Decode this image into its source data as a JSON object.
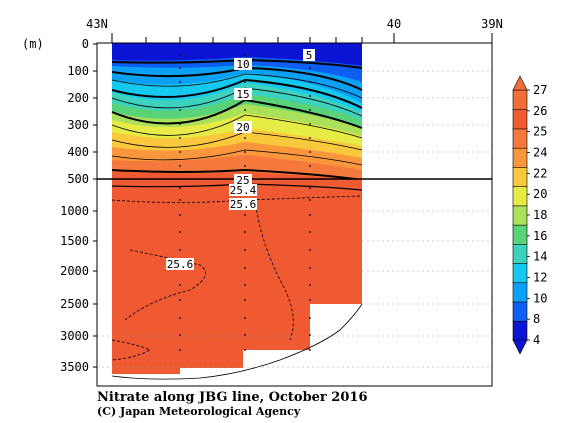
{
  "chart_data": {
    "type": "heatmap",
    "title": "Nitrate along JBG line, October 2016",
    "credit": "(C) Japan Meteorological Agency",
    "y_unit": "(m)",
    "x_ticks": [
      "43N",
      "40",
      "39N"
    ],
    "upper_panel": {
      "y_ticks": [
        "0",
        "100",
        "200",
        "300",
        "400",
        "500"
      ],
      "ylim": [
        500,
        0
      ]
    },
    "lower_panel": {
      "y_ticks": [
        "1000",
        "1500",
        "2000",
        "2500",
        "3000",
        "3500"
      ],
      "ylim": [
        3800,
        500
      ]
    },
    "colorbar": {
      "ticks": [
        "4",
        "8",
        "10",
        "12",
        "14",
        "16",
        "18",
        "20",
        "22",
        "24",
        "25",
        "26",
        "27"
      ],
      "colors": [
        "#0a14d2",
        "#0c5ff0",
        "#0aa0f5",
        "#14c8f0",
        "#3cd2be",
        "#5ad278",
        "#aae05a",
        "#e6eb46",
        "#fac83c",
        "#fa963c",
        "#f5783c",
        "#f05a32",
        "#f06e37"
      ]
    },
    "contour_labels": [
      "5",
      "10",
      "15",
      "20",
      "25",
      "25.4",
      "25.6",
      "25.6"
    ],
    "profile_depths": [
      {
        "depth_m": 3600
      },
      {
        "depth_m": 3620
      },
      {
        "depth_m": 3550
      },
      {
        "depth_m": 3200
      },
      {
        "depth_m": 2500
      }
    ],
    "grid": false
  }
}
